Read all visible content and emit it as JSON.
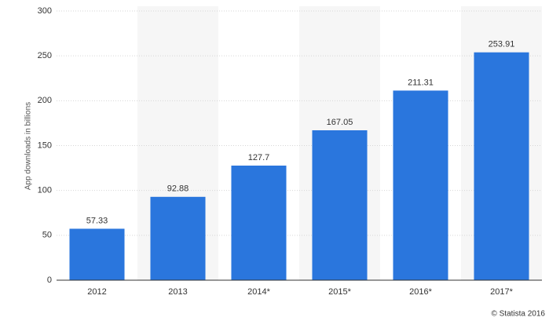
{
  "chart_data": {
    "type": "bar",
    "y_label": "App downloads in billions",
    "categories": [
      "2012",
      "2013",
      "2014*",
      "2015*",
      "2016*",
      "2017*"
    ],
    "values": [
      57.33,
      92.88,
      127.7,
      167.05,
      211.31,
      253.91
    ],
    "color": "#2a76dd",
    "ylim": [
      0,
      300
    ],
    "yticks": [
      0,
      50,
      100,
      150,
      200,
      250,
      300
    ],
    "grid": true,
    "alternate_bands": true,
    "source": "© Statista 2016"
  }
}
